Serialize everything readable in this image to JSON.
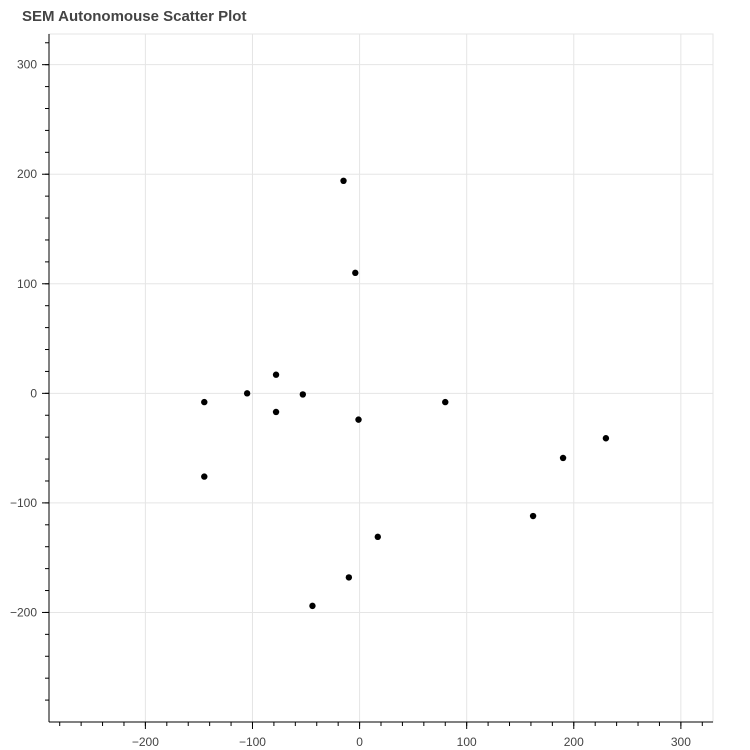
{
  "chart_data": {
    "type": "scatter",
    "title": "SEM Autonomouse Scatter Plot",
    "xlabel": "",
    "ylabel": "",
    "xlim": [
      -290,
      330
    ],
    "ylim": [
      -300,
      328
    ],
    "x_ticks": [
      -200,
      -100,
      0,
      100,
      200,
      300
    ],
    "x_tick_labels": [
      "−200",
      "−100",
      "0",
      "100",
      "200",
      "300"
    ],
    "y_ticks": [
      -200,
      -100,
      0,
      100,
      200,
      300
    ],
    "y_tick_labels": [
      "−200",
      "−100",
      "0",
      "100",
      "200",
      "300"
    ],
    "grid": true,
    "marker_color": "#000000",
    "grid_color": "#e5e5e5",
    "points": [
      {
        "x": -15,
        "y": 194
      },
      {
        "x": -4,
        "y": 110
      },
      {
        "x": -78,
        "y": 17
      },
      {
        "x": -105,
        "y": 0
      },
      {
        "x": -53,
        "y": -1
      },
      {
        "x": -145,
        "y": -8
      },
      {
        "x": -78,
        "y": -17
      },
      {
        "x": -1,
        "y": -24
      },
      {
        "x": 80,
        "y": -8
      },
      {
        "x": 230,
        "y": -41
      },
      {
        "x": 190,
        "y": -59
      },
      {
        "x": -145,
        "y": -76
      },
      {
        "x": 162,
        "y": -112
      },
      {
        "x": 17,
        "y": -131
      },
      {
        "x": -10,
        "y": -168
      },
      {
        "x": -44,
        "y": -194
      }
    ]
  }
}
